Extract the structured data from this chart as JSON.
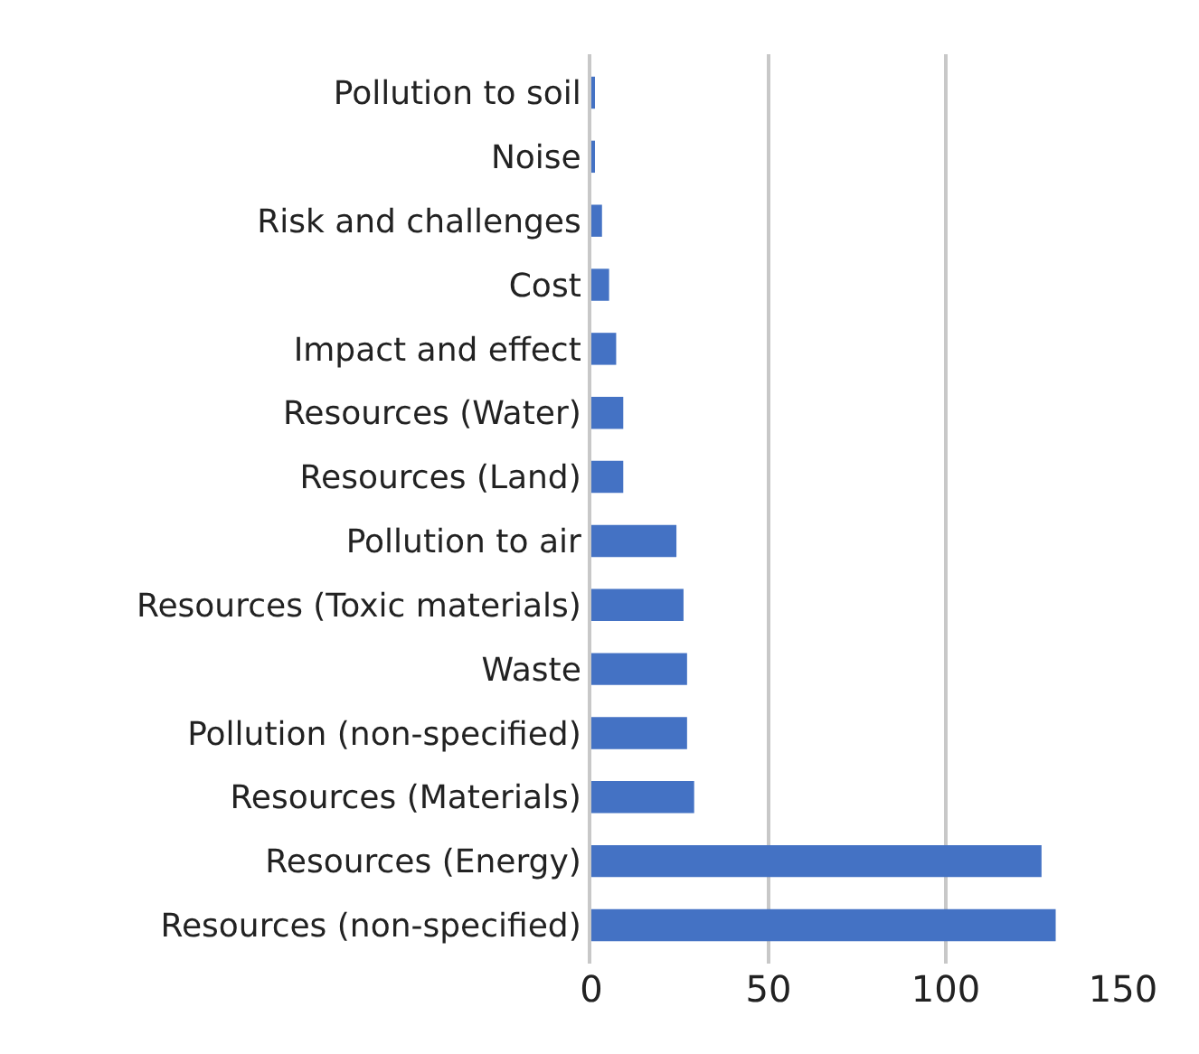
{
  "chart_data": {
    "type": "bar",
    "orientation": "horizontal",
    "categories": [
      "Pollution to soil",
      "Noise",
      "Risk and challenges",
      "Cost",
      "Impact and effect",
      "Resources (Water)",
      "Resources (Land)",
      "Pollution to air",
      "Resources (Toxic materials)",
      "Waste",
      "Pollution (non-specified)",
      "Resources (Materials)",
      "Resources (Energy)",
      "Resources (non-specified)"
    ],
    "values": [
      1,
      1,
      3,
      5,
      7,
      9,
      9,
      24,
      26,
      27,
      27,
      29,
      127,
      131
    ],
    "color": "#4472c4",
    "xlim": [
      0,
      150
    ],
    "xticks": [
      0,
      50,
      100,
      150
    ],
    "grid": "x",
    "legend": false
  }
}
